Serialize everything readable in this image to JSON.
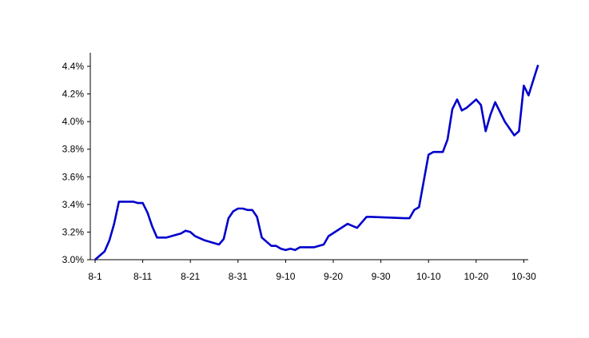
{
  "chart_data": {
    "type": "line",
    "title": "",
    "xlabel": "",
    "ylabel": "",
    "ylim": [
      3.0,
      4.5
    ],
    "y_ticks": [
      3.0,
      3.2,
      3.4,
      3.6,
      3.8,
      4.0,
      4.2,
      4.4
    ],
    "y_tick_labels": [
      "3.0%",
      "3.2%",
      "3.4%",
      "3.6%",
      "3.8%",
      "4.0%",
      "4.2%",
      "4.4%"
    ],
    "x_tick_labels": [
      "8-1",
      "8-11",
      "8-21",
      "8-31",
      "9-10",
      "9-20",
      "9-30",
      "10-10",
      "10-20",
      "10-30"
    ],
    "grid": false,
    "legend": "none",
    "line_color": "#0000cc",
    "series": [
      {
        "x": [
          "8-1",
          "8-3",
          "8-4",
          "8-5",
          "8-6",
          "8-7",
          "8-8",
          "8-9",
          "8-10",
          "8-11",
          "8-12",
          "8-13",
          "8-14",
          "8-16",
          "8-18",
          "8-19",
          "8-20",
          "8-21",
          "8-22",
          "8-24",
          "8-26",
          "8-27",
          "8-28",
          "8-29",
          "8-30",
          "8-31",
          "9-1",
          "9-2",
          "9-3",
          "9-4",
          "9-5",
          "9-7",
          "9-8",
          "9-9",
          "9-10",
          "9-11",
          "9-12",
          "9-13",
          "9-16",
          "9-18",
          "9-19",
          "9-23",
          "9-25",
          "9-27",
          "9-28",
          "10-5",
          "10-6",
          "10-7",
          "10-8",
          "10-10",
          "10-11",
          "10-13",
          "10-14",
          "10-15",
          "10-16",
          "10-17",
          "10-18",
          "10-20",
          "10-21",
          "10-22",
          "10-23",
          "10-24",
          "10-25",
          "10-26",
          "10-28",
          "10-29",
          "10-30",
          "10-31",
          "10-32",
          "10-33"
        ],
        "values": [
          3.0,
          3.06,
          3.14,
          3.26,
          3.42,
          3.42,
          3.42,
          3.42,
          3.41,
          3.41,
          3.34,
          3.24,
          3.16,
          3.16,
          3.18,
          3.19,
          3.21,
          3.2,
          3.17,
          3.14,
          3.12,
          3.11,
          3.15,
          3.3,
          3.35,
          3.37,
          3.37,
          3.36,
          3.36,
          3.31,
          3.16,
          3.1,
          3.1,
          3.08,
          3.07,
          3.08,
          3.07,
          3.09,
          3.09,
          3.11,
          3.17,
          3.26,
          3.23,
          3.31,
          3.31,
          3.3,
          3.3,
          3.36,
          3.38,
          3.76,
          3.78,
          3.78,
          3.87,
          4.09,
          4.16,
          4.08,
          4.1,
          4.16,
          4.12,
          3.93,
          4.05,
          4.14,
          4.07,
          4.0,
          3.9,
          3.93,
          4.26,
          4.19,
          4.3,
          4.41
        ]
      }
    ]
  }
}
